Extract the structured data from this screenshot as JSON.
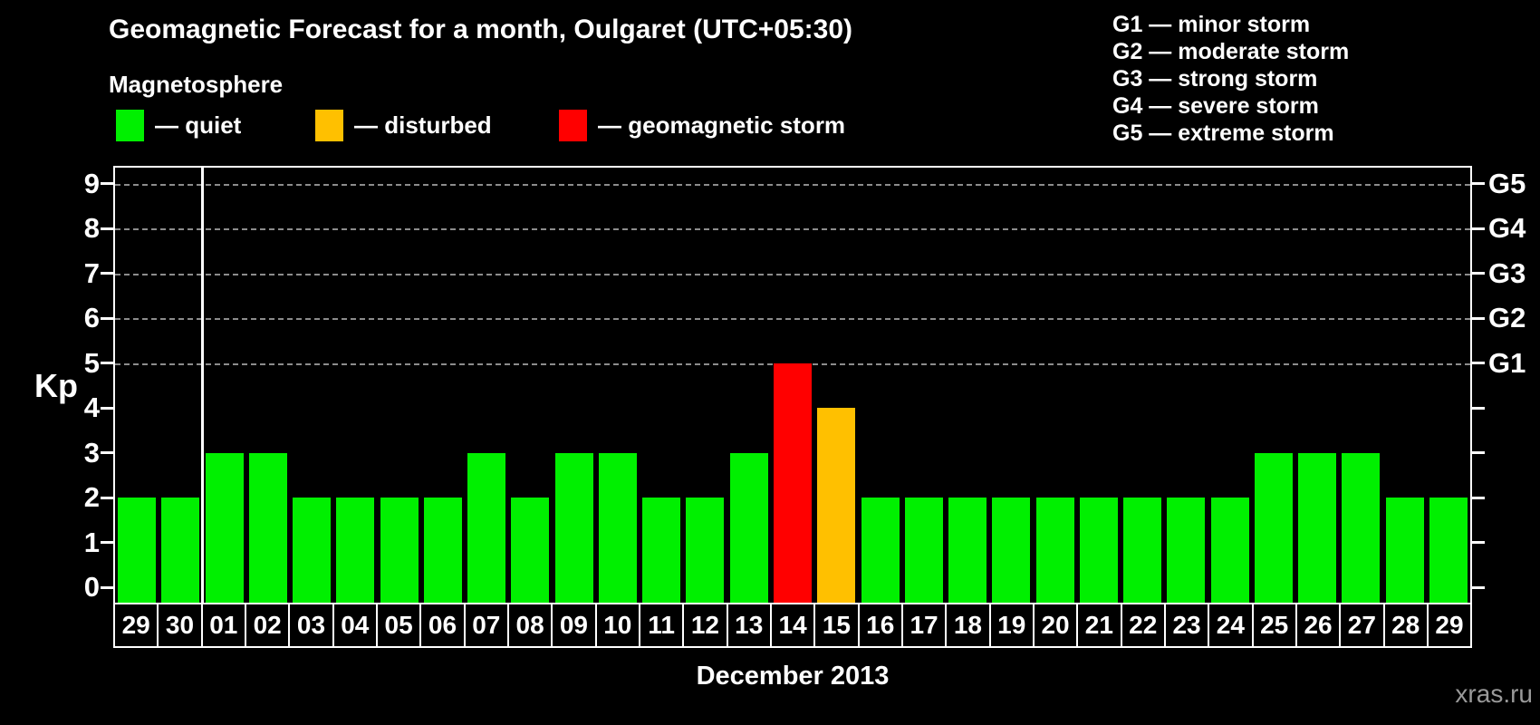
{
  "header": {
    "title": "Geomagnetic Forecast for a month, Oulgaret (UTC+05:30)"
  },
  "legend": {
    "heading": "Magnetosphere",
    "items": [
      {
        "status": "quiet",
        "label": "— quiet",
        "color": "#00f000"
      },
      {
        "status": "disturbed",
        "label": "— disturbed",
        "color": "#ffc000"
      },
      {
        "status": "storm",
        "label": "— geomagnetic storm",
        "color": "#ff0000"
      }
    ]
  },
  "storm_scale_legend": [
    "G1 — minor storm",
    "G2 — moderate storm",
    "G3 — strong storm",
    "G4 — severe storm",
    "G5 — extreme storm"
  ],
  "axes": {
    "kp_label": "Kp",
    "y_ticks": [
      0,
      1,
      2,
      3,
      4,
      5,
      6,
      7,
      8,
      9
    ],
    "right_labels": [
      {
        "kp": 5,
        "label": "G1"
      },
      {
        "kp": 6,
        "label": "G2"
      },
      {
        "kp": 7,
        "label": "G3"
      },
      {
        "kp": 8,
        "label": "G4"
      },
      {
        "kp": 9,
        "label": "G5"
      }
    ],
    "x_title": "December 2013"
  },
  "watermark": {
    "text": "xras.ru",
    "color": "#999999"
  },
  "chart_data": {
    "type": "bar",
    "title": "Geomagnetic Forecast for a month, Oulgaret (UTC+05:30)",
    "xlabel": "December 2013",
    "ylabel": "Kp",
    "ylim": [
      0,
      9
    ],
    "grid_levels": [
      5,
      6,
      7,
      8,
      9
    ],
    "legend_position": "top-left",
    "month_divider_after_index": 1,
    "categories": [
      "29",
      "30",
      "01",
      "02",
      "03",
      "04",
      "05",
      "06",
      "07",
      "08",
      "09",
      "10",
      "11",
      "12",
      "13",
      "14",
      "15",
      "16",
      "17",
      "18",
      "19",
      "20",
      "21",
      "22",
      "23",
      "24",
      "25",
      "26",
      "27",
      "28",
      "29"
    ],
    "values": [
      2,
      2,
      3,
      3,
      2,
      2,
      2,
      2,
      3,
      2,
      3,
      3,
      2,
      2,
      3,
      5,
      4,
      2,
      2,
      2,
      2,
      2,
      2,
      2,
      2,
      2,
      3,
      3,
      3,
      2,
      2
    ],
    "statuses": [
      "quiet",
      "quiet",
      "quiet",
      "quiet",
      "quiet",
      "quiet",
      "quiet",
      "quiet",
      "quiet",
      "quiet",
      "quiet",
      "quiet",
      "quiet",
      "quiet",
      "quiet",
      "storm",
      "disturbed",
      "quiet",
      "quiet",
      "quiet",
      "quiet",
      "quiet",
      "quiet",
      "quiet",
      "quiet",
      "quiet",
      "quiet",
      "quiet",
      "quiet",
      "quiet",
      "quiet"
    ],
    "status_colors": {
      "quiet": "#00f000",
      "disturbed": "#ffc000",
      "storm": "#ff0000"
    },
    "grid_color": "#8c8c8c",
    "axis_color": "#ffffff"
  }
}
